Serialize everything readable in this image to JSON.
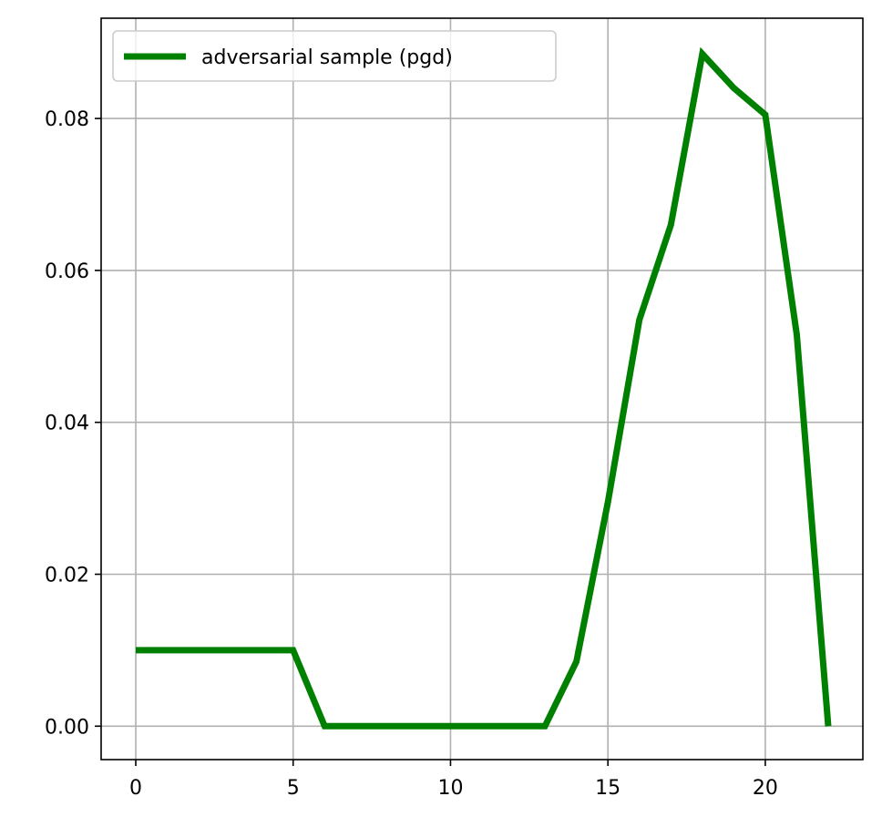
{
  "chart_data": {
    "type": "line",
    "title": "",
    "xlabel": "",
    "ylabel": "",
    "xlim": [
      -1.1,
      23.1
    ],
    "ylim": [
      -0.0044,
      0.0932
    ],
    "xticks": [
      0,
      5,
      10,
      15,
      20
    ],
    "xtick_labels": [
      "0",
      "5",
      "10",
      "15",
      "20"
    ],
    "yticks": [
      0.0,
      0.02,
      0.04,
      0.06,
      0.08
    ],
    "ytick_labels": [
      "0.00",
      "0.02",
      "0.04",
      "0.06",
      "0.08"
    ],
    "grid": true,
    "legend_position": "top-left",
    "series": [
      {
        "name": "adversarial sample (pgd)",
        "color": "#008000",
        "x": [
          0,
          1,
          2,
          3,
          4,
          5,
          6,
          7,
          8,
          9,
          10,
          11,
          12,
          13,
          14,
          15,
          16,
          17,
          18,
          19,
          20,
          21,
          22
        ],
        "y": [
          0.01,
          0.01,
          0.01,
          0.01,
          0.01,
          0.01,
          0.0,
          0.0,
          0.0,
          0.0,
          0.0,
          0.0,
          0.0,
          0.0,
          0.0085,
          0.0295,
          0.0535,
          0.066,
          0.0885,
          0.084,
          0.0805,
          0.0515,
          0.0
        ]
      }
    ]
  }
}
